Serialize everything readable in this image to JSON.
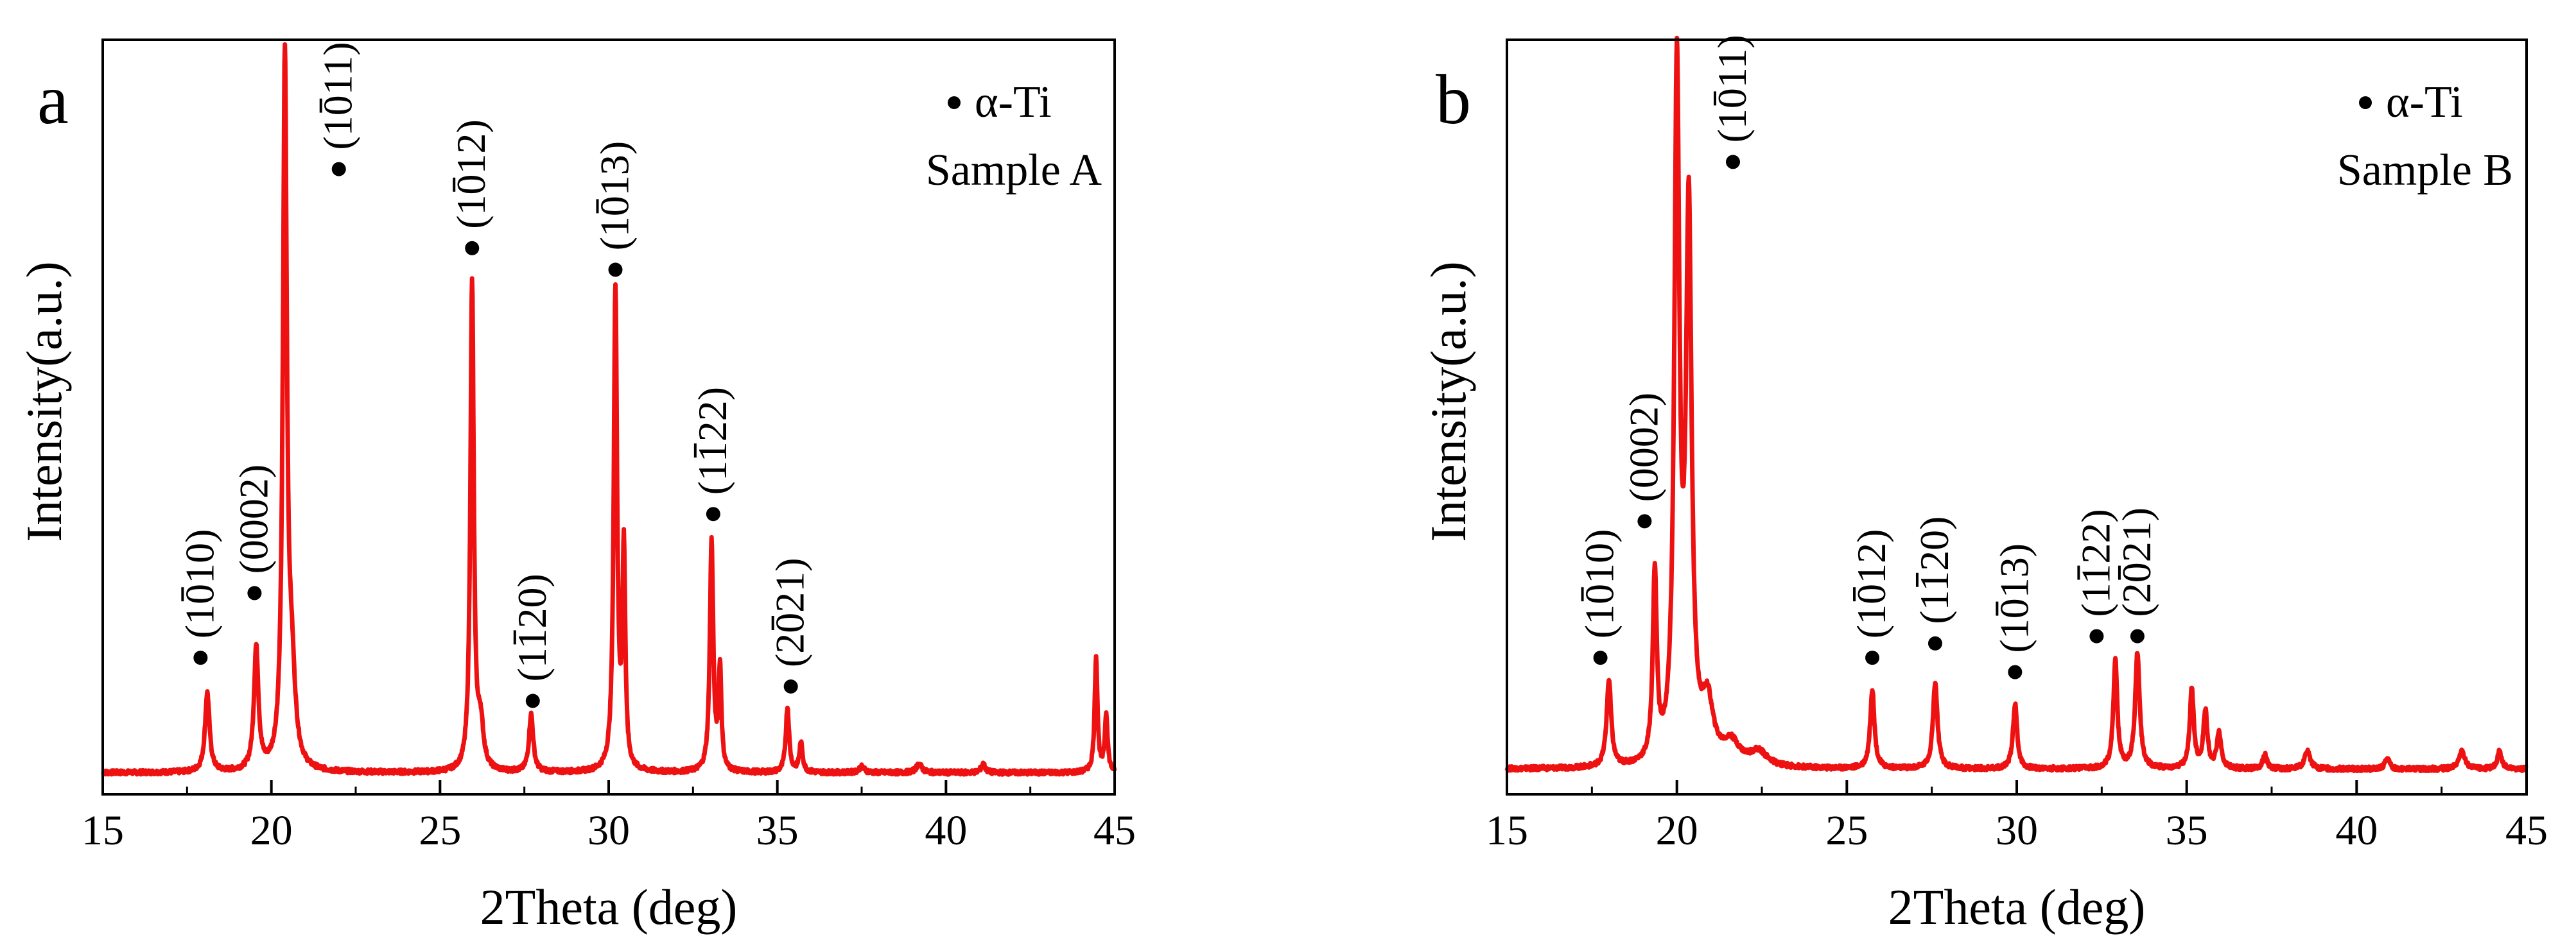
{
  "chart_data": [
    {
      "type": "line",
      "panel_label": "a",
      "xlabel": "2Theta (deg)",
      "ylabel": "Intensity(a.u.)",
      "xlim": [
        15,
        45
      ],
      "ylim": [
        0,
        1.05
      ],
      "xticks": [
        15,
        20,
        25,
        30,
        35,
        40,
        45
      ],
      "xtick_labels": [
        "15",
        "20",
        "25",
        "30",
        "35",
        "40",
        "45"
      ],
      "line_color": "#ee1111",
      "legend": {
        "marker": "•",
        "label": "α-Ti",
        "sample": "Sample A",
        "position": "top-right"
      },
      "baseline": 0.03,
      "peaks": [
        {
          "x": 18.1,
          "h": 0.11,
          "w": 0.16
        },
        {
          "x": 19.55,
          "h": 0.17,
          "w": 0.16
        },
        {
          "x": 20.4,
          "h": 0.98,
          "w": 0.14
        },
        {
          "x": 20.6,
          "h": 0.12,
          "w": 0.25
        },
        {
          "x": 25.95,
          "h": 0.68,
          "w": 0.12
        },
        {
          "x": 26.2,
          "h": 0.06,
          "w": 0.2
        },
        {
          "x": 27.7,
          "h": 0.08,
          "w": 0.15
        },
        {
          "x": 30.2,
          "h": 0.67,
          "w": 0.12
        },
        {
          "x": 30.45,
          "h": 0.3,
          "w": 0.1
        },
        {
          "x": 33.05,
          "h": 0.32,
          "w": 0.12
        },
        {
          "x": 33.3,
          "h": 0.14,
          "w": 0.1
        },
        {
          "x": 35.3,
          "h": 0.09,
          "w": 0.12
        },
        {
          "x": 35.7,
          "h": 0.04,
          "w": 0.12
        },
        {
          "x": 37.5,
          "h": 0.008,
          "w": 0.2
        },
        {
          "x": 39.2,
          "h": 0.012,
          "w": 0.2
        },
        {
          "x": 41.1,
          "h": 0.012,
          "w": 0.15
        },
        {
          "x": 44.45,
          "h": 0.16,
          "w": 0.1
        },
        {
          "x": 44.75,
          "h": 0.08,
          "w": 0.1
        }
      ],
      "annotations": [
        {
          "label": "(1010)",
          "bar_digit": 2,
          "x": 17.9,
          "y": 0.19
        },
        {
          "label": "(0002)",
          "bar_digit": null,
          "x": 19.5,
          "y": 0.28
        },
        {
          "label": "(1011)",
          "bar_digit": 2,
          "x": 22.0,
          "y": 0.87
        },
        {
          "label": "(1012)",
          "bar_digit": 2,
          "x": 25.95,
          "y": 0.76
        },
        {
          "label": "(1120)",
          "bar_digit": 2,
          "x": 27.75,
          "y": 0.13
        },
        {
          "label": "(1013)",
          "bar_digit": 2,
          "x": 30.2,
          "y": 0.73
        },
        {
          "label": "(1122)",
          "bar_digit": 2,
          "x": 33.1,
          "y": 0.39
        },
        {
          "label": "(2021)",
          "bar_digit": 2,
          "x": 35.4,
          "y": 0.15
        }
      ]
    },
    {
      "type": "line",
      "panel_label": "b",
      "xlabel": "2Theta (deg)",
      "ylabel": "Intensity(a.u.)",
      "xlim": [
        15,
        45
      ],
      "ylim": [
        0,
        1.05
      ],
      "xticks": [
        15,
        20,
        25,
        30,
        35,
        40,
        45
      ],
      "xtick_labels": [
        "15",
        "20",
        "25",
        "30",
        "35",
        "40",
        "45"
      ],
      "line_color": "#ee1111",
      "legend": {
        "marker": "•",
        "label": "α-Ti",
        "sample": "Sample B",
        "position": "top-right"
      },
      "baseline": 0.035,
      "peaks": [
        {
          "x": 18.0,
          "h": 0.12,
          "w": 0.16
        },
        {
          "x": 19.35,
          "h": 0.26,
          "w": 0.14
        },
        {
          "x": 20.0,
          "h": 0.95,
          "w": 0.18
        },
        {
          "x": 20.35,
          "h": 0.75,
          "w": 0.2
        },
        {
          "x": 20.9,
          "h": 0.08,
          "w": 0.4
        },
        {
          "x": 21.6,
          "h": 0.03,
          "w": 0.6
        },
        {
          "x": 22.4,
          "h": 0.02,
          "w": 0.6
        },
        {
          "x": 25.75,
          "h": 0.11,
          "w": 0.15
        },
        {
          "x": 27.6,
          "h": 0.12,
          "w": 0.16
        },
        {
          "x": 29.95,
          "h": 0.09,
          "w": 0.15
        },
        {
          "x": 32.9,
          "h": 0.15,
          "w": 0.14
        },
        {
          "x": 33.55,
          "h": 0.16,
          "w": 0.16
        },
        {
          "x": 35.15,
          "h": 0.11,
          "w": 0.14
        },
        {
          "x": 35.55,
          "h": 0.08,
          "w": 0.14
        },
        {
          "x": 35.95,
          "h": 0.05,
          "w": 0.15
        },
        {
          "x": 37.3,
          "h": 0.02,
          "w": 0.15
        },
        {
          "x": 38.55,
          "h": 0.025,
          "w": 0.2
        },
        {
          "x": 40.9,
          "h": 0.015,
          "w": 0.15
        },
        {
          "x": 43.1,
          "h": 0.025,
          "w": 0.2
        },
        {
          "x": 44.2,
          "h": 0.025,
          "w": 0.15
        }
      ],
      "annotations": [
        {
          "label": "(1010)",
          "bar_digit": 2,
          "x": 17.75,
          "y": 0.19
        },
        {
          "label": "(0002)",
          "bar_digit": null,
          "x": 19.05,
          "y": 0.38
        },
        {
          "label": "(1011)",
          "bar_digit": 2,
          "x": 21.65,
          "y": 0.88
        },
        {
          "label": "(1012)",
          "bar_digit": 2,
          "x": 25.75,
          "y": 0.19
        },
        {
          "label": "(1120)",
          "bar_digit": 2,
          "x": 27.6,
          "y": 0.21
        },
        {
          "label": "(1013)",
          "bar_digit": 2,
          "x": 29.95,
          "y": 0.17
        },
        {
          "label": "(1122)",
          "bar_digit": 2,
          "x": 32.35,
          "y": 0.22
        },
        {
          "label": "(2021)",
          "bar_digit": 2,
          "x": 33.55,
          "y": 0.22
        }
      ]
    }
  ]
}
